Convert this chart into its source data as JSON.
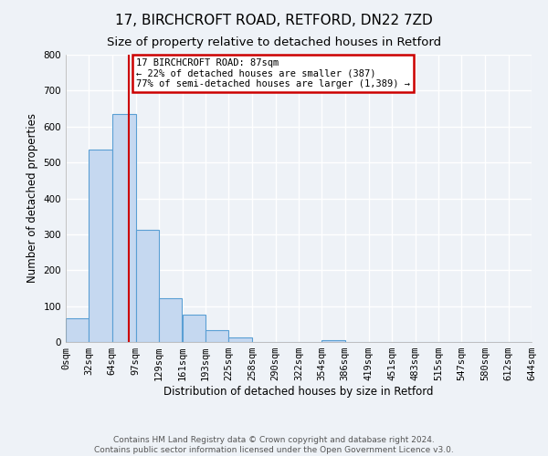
{
  "title": "17, BIRCHCROFT ROAD, RETFORD, DN22 7ZD",
  "subtitle": "Size of property relative to detached houses in Retford",
  "xlabel": "Distribution of detached houses by size in Retford",
  "ylabel": "Number of detached properties",
  "bin_edges": [
    0,
    32,
    64,
    97,
    129,
    161,
    193,
    225,
    258,
    290,
    322,
    354,
    386,
    419,
    451,
    483,
    515,
    547,
    580,
    612,
    644
  ],
  "bin_labels": [
    "0sqm",
    "32sqm",
    "64sqm",
    "97sqm",
    "129sqm",
    "161sqm",
    "193sqm",
    "225sqm",
    "258sqm",
    "290sqm",
    "322sqm",
    "354sqm",
    "386sqm",
    "419sqm",
    "451sqm",
    "483sqm",
    "515sqm",
    "547sqm",
    "580sqm",
    "612sqm",
    "644sqm"
  ],
  "bar_heights": [
    65,
    535,
    635,
    313,
    122,
    77,
    33,
    13,
    0,
    0,
    0,
    5,
    0,
    0,
    0,
    0,
    0,
    0,
    0,
    0
  ],
  "bar_color": "#c5d8f0",
  "bar_edge_color": "#5a9fd4",
  "property_value": 87,
  "vline_color": "#cc0000",
  "annotation_title": "17 BIRCHCROFT ROAD: 87sqm",
  "annotation_line1": "← 22% of detached houses are smaller (387)",
  "annotation_line2": "77% of semi-detached houses are larger (1,389) →",
  "annotation_box_color": "#ffffff",
  "annotation_box_edge_color": "#cc0000",
  "ylim": [
    0,
    800
  ],
  "yticks": [
    0,
    100,
    200,
    300,
    400,
    500,
    600,
    700,
    800
  ],
  "footer_line1": "Contains HM Land Registry data © Crown copyright and database right 2024.",
  "footer_line2": "Contains public sector information licensed under the Open Government Licence v3.0.",
  "background_color": "#eef2f7",
  "grid_color": "#ffffff",
  "title_fontsize": 11,
  "subtitle_fontsize": 9.5,
  "axis_label_fontsize": 8.5,
  "tick_fontsize": 7.5,
  "footer_fontsize": 6.5,
  "annotation_fontsize": 7.5
}
